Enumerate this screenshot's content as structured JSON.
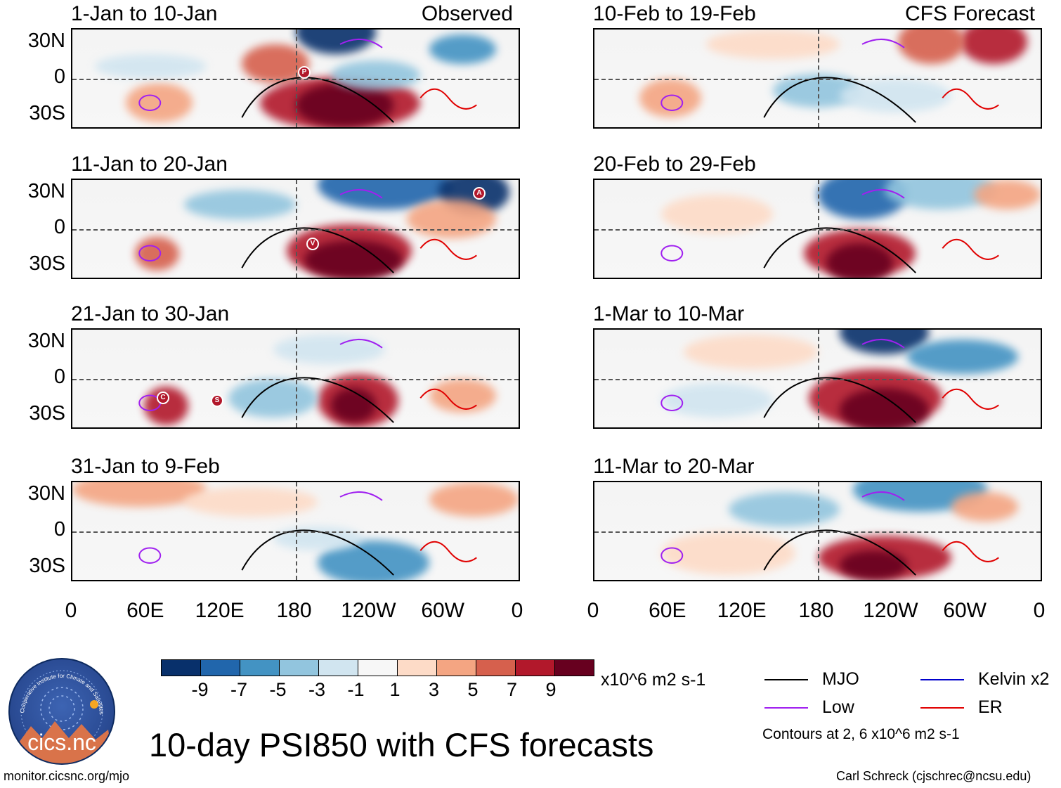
{
  "panels_left": [
    {
      "title": "1-Jan to 10-Jan",
      "corner_label": "Observed"
    },
    {
      "title": "11-Jan to 20-Jan",
      "corner_label": ""
    },
    {
      "title": "21-Jan to 30-Jan",
      "corner_label": ""
    },
    {
      "title": "31-Jan to 9-Feb",
      "corner_label": ""
    }
  ],
  "panels_right": [
    {
      "title": "10-Feb to 19-Feb",
      "corner_label": "CFS Forecast"
    },
    {
      "title": "20-Feb to 29-Feb",
      "corner_label": ""
    },
    {
      "title": "1-Mar to 10-Mar",
      "corner_label": ""
    },
    {
      "title": "11-Mar to 20-Mar",
      "corner_label": ""
    }
  ],
  "lat_labels": [
    "30N",
    "0",
    "30S"
  ],
  "lon_labels": [
    "0",
    "60E",
    "120E",
    "180",
    "120W",
    "60W",
    "0"
  ],
  "storm_markers": [
    {
      "label": "P"
    },
    {
      "label": "A"
    },
    {
      "label": "V"
    },
    {
      "label": "C"
    },
    {
      "label": "S"
    }
  ],
  "colorbar": {
    "colors": [
      "#08306b",
      "#2166ac",
      "#4393c3",
      "#92c5de",
      "#d1e5f0",
      "#f7f7f7",
      "#fddbc7",
      "#f4a582",
      "#d6604d",
      "#b2182b",
      "#67001f"
    ],
    "ticks": [
      "-9",
      "-7",
      "-5",
      "-3",
      "-1",
      "1",
      "3",
      "5",
      "7",
      "9"
    ],
    "units": "x10^6 m2 s-1"
  },
  "legend": {
    "items": [
      {
        "label": "MJO",
        "color": "#000000"
      },
      {
        "label": "Kelvin x2",
        "color": "#0000cc"
      },
      {
        "label": "Low",
        "color": "#a020f0"
      },
      {
        "label": "ER",
        "color": "#e00000"
      }
    ],
    "contour_note": "Contours at 2, 6 x10^6 m2 s-1"
  },
  "main_title": "10-day PSI850 with CFS forecasts",
  "logo_text": "cics.nc",
  "logo_ring_text": "Cooperative Institute for Climate and Satellites",
  "footer_left": "monitor.cicsnc.org/mjo",
  "footer_right": "Carl Schreck (cjschrec@ncsu.edu)"
}
